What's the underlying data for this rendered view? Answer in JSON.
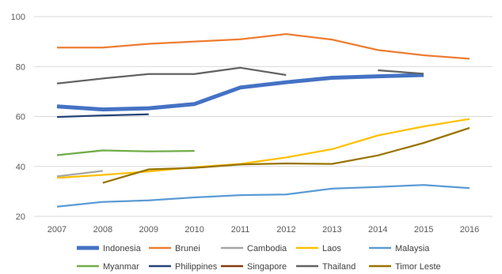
{
  "chart_data": {
    "type": "line",
    "title": "",
    "xlabel": "",
    "ylabel": "",
    "x": [
      "2007",
      "2008",
      "2009",
      "2010",
      "2011",
      "2012",
      "2013",
      "2014",
      "2015",
      "2016"
    ],
    "ylim": [
      20,
      100
    ],
    "yticks": [
      "20",
      "40",
      "60",
      "80",
      "100"
    ],
    "grid": "horizontal",
    "legend_position": "bottom",
    "series": [
      {
        "name": "Indonesia",
        "color": "#4472C4",
        "values": [
          64,
          62.8,
          63.3,
          65,
          71.6,
          73.7,
          75.5,
          76.1,
          76.6,
          null
        ]
      },
      {
        "name": "Brunei",
        "color": "#ED7D31",
        "values": [
          87.6,
          87.6,
          89.1,
          90,
          90.9,
          93,
          90.8,
          86.6,
          84.5,
          83.1
        ]
      },
      {
        "name": "Cambodia",
        "color": "#A5A5A5",
        "values": [
          36,
          38.2,
          null,
          null,
          null,
          null,
          null,
          null,
          null,
          null
        ]
      },
      {
        "name": "Laos",
        "color": "#FFC000",
        "values": [
          35.4,
          36.6,
          38,
          39.7,
          41,
          43.6,
          46.9,
          52.4,
          56,
          59
        ]
      },
      {
        "name": "Malaysia",
        "color": "#5B9BD5",
        "values": [
          23.9,
          25.8,
          26.4,
          27.6,
          28.5,
          28.8,
          31.1,
          31.8,
          32.6,
          31.3
        ]
      },
      {
        "name": "Myanmar",
        "color": "#70AD47",
        "values": [
          44.5,
          46.4,
          46,
          46.2,
          null,
          null,
          null,
          null,
          null,
          null
        ]
      },
      {
        "name": "Philippines",
        "color": "#264478",
        "values": [
          59.8,
          60.4,
          60.9,
          null,
          null,
          null,
          null,
          null,
          null,
          null
        ]
      },
      {
        "name": "Singapore",
        "color": "#843C0C",
        "values": [
          null,
          null,
          null,
          null,
          null,
          null,
          null,
          null,
          null,
          null
        ]
      },
      {
        "name": "Thailand",
        "color": "#636363",
        "values": [
          73.2,
          75.2,
          77,
          77,
          79.5,
          76.6,
          null,
          78.5,
          77.1,
          null
        ]
      },
      {
        "name": "Timor Leste",
        "color": "#997300",
        "values": [
          null,
          33.4,
          38.8,
          39.4,
          40.8,
          41.2,
          41,
          44.4,
          49.4,
          55.4
        ]
      }
    ]
  }
}
